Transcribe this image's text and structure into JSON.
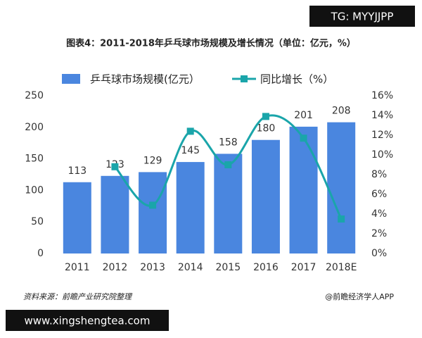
{
  "chart_data": {
    "type": "bar",
    "title": "图表4：2011-2018年乒乓球市场规模及增长情况（单位：亿元，%）",
    "categories": [
      "2011",
      "2012",
      "2013",
      "2014",
      "2015",
      "2016",
      "2017",
      "2018E"
    ],
    "series": [
      {
        "name": "乒乓球市场规模(亿元）",
        "type": "bar",
        "color": "#4a86df",
        "values": [
          113,
          123,
          129,
          145,
          158,
          180,
          201,
          208
        ]
      },
      {
        "name": "同比增长（%）",
        "type": "line",
        "axis": "y2",
        "color": "#1aa5aa",
        "values": [
          null,
          8.8,
          4.9,
          12.4,
          9.0,
          13.9,
          11.7,
          3.5
        ]
      }
    ],
    "ylim": [
      0,
      250
    ],
    "yticks": [
      0,
      50,
      100,
      150,
      200,
      250
    ],
    "y2lim": [
      0,
      16
    ],
    "y2ticks": [
      {
        "value": 0,
        "label": "0%"
      },
      {
        "value": 2,
        "label": "2%"
      },
      {
        "value": 4,
        "label": "4%"
      },
      {
        "value": 6,
        "label": "6%"
      },
      {
        "value": 8,
        "label": "8%"
      },
      {
        "value": 10,
        "label": "10%"
      },
      {
        "value": 12,
        "label": "12%"
      },
      {
        "value": 14,
        "label": "14%"
      },
      {
        "value": 16,
        "label": "16%"
      }
    ],
    "source": "资料来源：前瞻产业研究院整理",
    "credit": "@前瞻经济学人APP"
  },
  "watermarks": [
    "TG: MYYJJPP",
    "www.xingshengtea.com"
  ]
}
